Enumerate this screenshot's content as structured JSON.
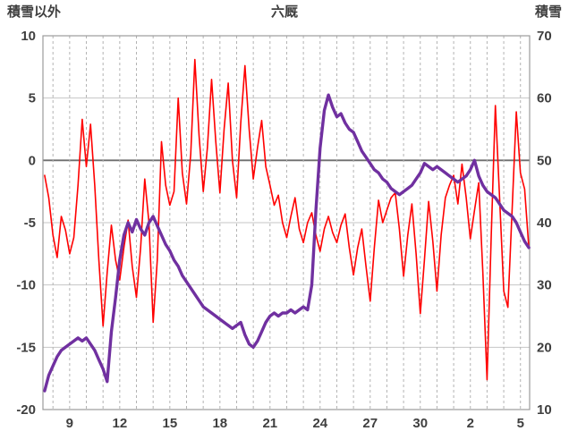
{
  "chart_data": {
    "type": "line",
    "title": "六厩",
    "left_axis": {
      "label": "積雪以外",
      "min": -20,
      "max": 10,
      "tick_interval": 5,
      "ticks": [
        10,
        5,
        0,
        -5,
        -10,
        -15,
        -20
      ]
    },
    "right_axis": {
      "label": "積雪",
      "min": 10,
      "max": 70,
      "tick_interval": 10,
      "ticks": [
        70,
        60,
        50,
        40,
        30,
        20,
        10
      ]
    },
    "x_axis": {
      "range": [
        7.4,
        36.55
      ],
      "grid_interval_days": 1,
      "ticks": [
        9,
        12,
        15,
        18,
        21,
        24,
        27,
        30,
        33,
        36
      ],
      "tick_labels": [
        "9",
        "12",
        "15",
        "18",
        "21",
        "24",
        "27",
        "30",
        "2",
        "5"
      ]
    },
    "zero_line_left_value": 0,
    "legend": "none",
    "grid": true,
    "series": [
      {
        "name": "積雪以外",
        "axis": "left",
        "color": "#ff0000",
        "width": 1.6,
        "x_start": 7.5,
        "x_step": 0.25,
        "values": [
          -1.2,
          -3,
          -6,
          -7.8,
          -4.5,
          -5.6,
          -7.5,
          -6.2,
          -2,
          3.3,
          -0.5,
          2.9,
          -2,
          -8,
          -13.3,
          -9,
          -5.2,
          -8,
          -9.6,
          -7,
          -4.8,
          -8.5,
          -11,
          -7,
          -1.5,
          -5,
          -13,
          -8,
          1.5,
          -2,
          -3.6,
          -2.5,
          5,
          -1,
          -3.5,
          0.5,
          8.1,
          2,
          -2.5,
          1,
          6.5,
          1.5,
          -2.6,
          2.5,
          6.2,
          0,
          -3,
          3,
          7.6,
          2.5,
          -1.5,
          1,
          3.2,
          -0.5,
          -2,
          -3.6,
          -2.8,
          -5,
          -6.2,
          -4.5,
          -3,
          -5.5,
          -6.6,
          -5,
          -4.2,
          -6,
          -7.3,
          -5.5,
          -4.5,
          -5.8,
          -6.6,
          -5.2,
          -4.3,
          -7,
          -9.2,
          -7,
          -5.5,
          -8.5,
          -11.3,
          -7,
          -3.2,
          -5,
          -4,
          -3,
          -2.6,
          -5.5,
          -9.3,
          -6,
          -3.5,
          -7.5,
          -12.3,
          -8,
          -3.3,
          -6.5,
          -10.5,
          -6,
          -3,
          -2,
          -1.2,
          -3.5,
          -0.3,
          -3,
          -6.3,
          -4,
          -1.8,
          -9,
          -17.6,
          -6,
          4.4,
          -3,
          -10.5,
          -11.8,
          -4,
          3.9,
          -1,
          -2.3,
          -7
        ]
      },
      {
        "name": "積雪",
        "axis": "right",
        "color": "#7030a0",
        "width": 3.4,
        "x_start": 7.5,
        "x_step": 0.25,
        "values": [
          13,
          15.5,
          17,
          18.5,
          19.5,
          20,
          20.5,
          21,
          21.5,
          21,
          21.5,
          20.5,
          19.5,
          18,
          16.5,
          14.5,
          22.5,
          28,
          34,
          38,
          40,
          38.5,
          40.5,
          39,
          38,
          40,
          41,
          39.5,
          38,
          36.5,
          35.5,
          34,
          33,
          31.5,
          30.5,
          29.5,
          28.5,
          27.5,
          26.5,
          26,
          25.5,
          25,
          24.5,
          24,
          23.5,
          23,
          23.5,
          24,
          22,
          20.5,
          20,
          21,
          22.5,
          24,
          25,
          25.5,
          25,
          25.5,
          25.5,
          26,
          25.5,
          26,
          26.5,
          26,
          30,
          42,
          52,
          58,
          60.5,
          58.5,
          57,
          57.5,
          56,
          55,
          54.5,
          53,
          51.5,
          50.5,
          49.5,
          48.5,
          48,
          47,
          46.5,
          45.5,
          45,
          44.5,
          45,
          45.5,
          46,
          47,
          48,
          49.5,
          49,
          48.5,
          49,
          48.5,
          48,
          47.5,
          47,
          46.5,
          47,
          47.5,
          48.5,
          50,
          47.5,
          46,
          45,
          44.5,
          44,
          43,
          42,
          41.5,
          41,
          40,
          38.5,
          37,
          36
        ]
      }
    ],
    "colors": {
      "background": "#ffffff",
      "text": "#3f3f3f",
      "grid_horizontal": "#c6c6c6",
      "grid_vertical_dashed": "#b3b3b3",
      "zero_line": "#6e6e6e",
      "border": "#9b9b9b"
    }
  }
}
